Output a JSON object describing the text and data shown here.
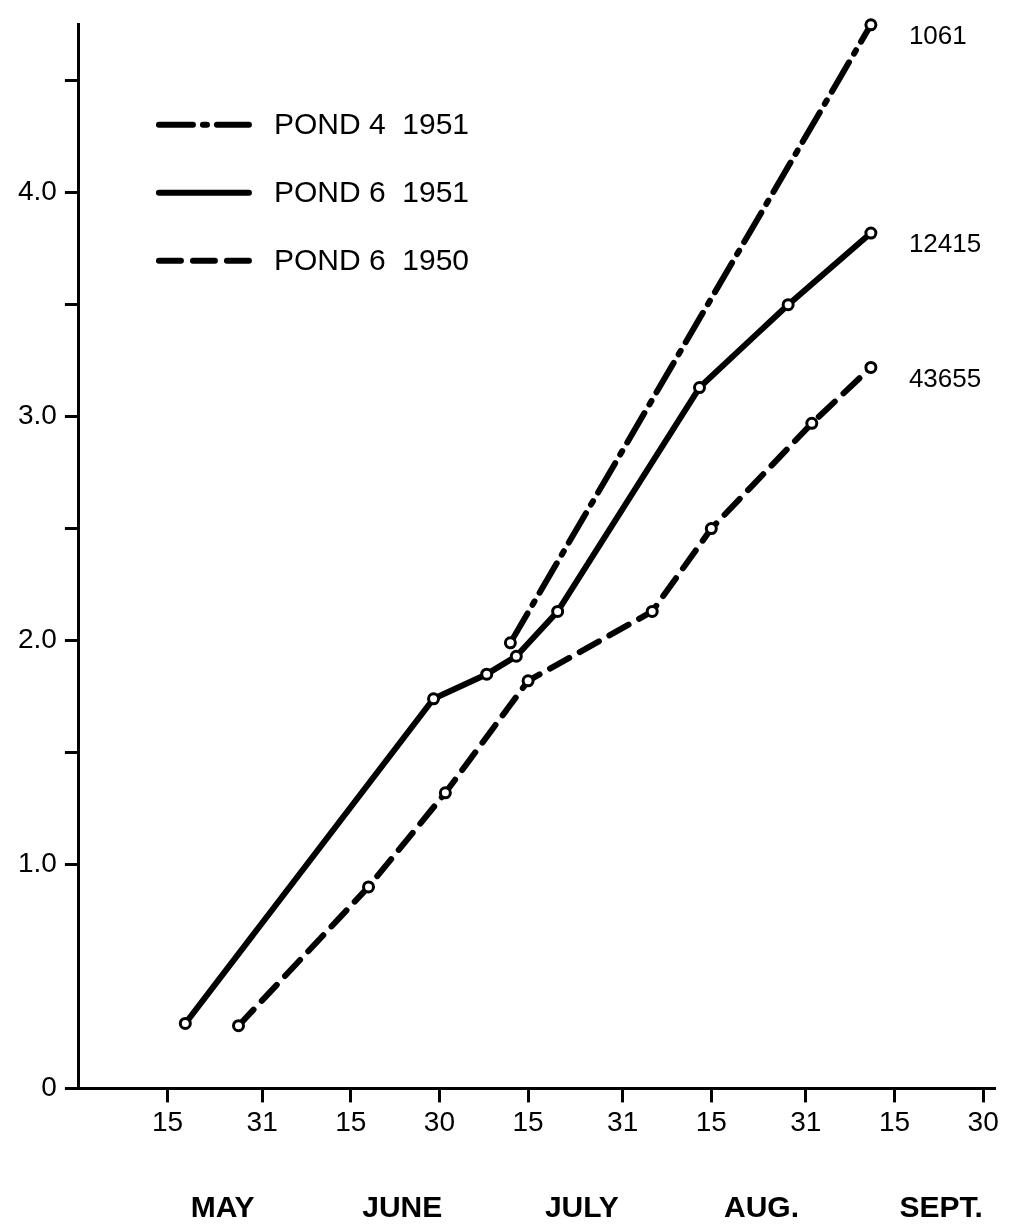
{
  "chart_data": {
    "type": "line",
    "xlim": [
      "--04-30",
      "--10-02"
    ],
    "ylim": [
      0,
      4.75
    ],
    "xticks": [
      {
        "value": "--05-15",
        "label": "15"
      },
      {
        "value": "--05-31",
        "label": "31"
      },
      {
        "value": "--06-15",
        "label": "15"
      },
      {
        "value": "--06-30",
        "label": "30"
      },
      {
        "value": "--07-15",
        "label": "15"
      },
      {
        "value": "--07-31",
        "label": "31"
      },
      {
        "value": "--08-15",
        "label": "15"
      },
      {
        "value": "--08-31",
        "label": "31"
      },
      {
        "value": "--09-15",
        "label": "15"
      },
      {
        "value": "--09-30",
        "label": "30"
      }
    ],
    "yticks": [
      0,
      {
        "value": 1,
        "label": "1.0"
      },
      {
        "value": 1.5,
        "label": null
      },
      {
        "value": 2,
        "label": "2.0"
      },
      {
        "value": 2.5,
        "label": null
      },
      {
        "value": 3,
        "label": "3.0"
      },
      {
        "value": 3.5,
        "label": null
      },
      {
        "value": 4,
        "label": "4.0"
      },
      {
        "value": 4.5,
        "label": null
      }
    ],
    "series": [
      {
        "name": "POND 4  1951",
        "color": "#000000",
        "line_style": "dashdot",
        "x": [
          "--07-12",
          "--09-11"
        ],
        "values": [
          1.99,
          4.75
        ]
      },
      {
        "name": "POND 6  1951",
        "color": "#000000",
        "line_style": "solid",
        "x": [
          "--05-18",
          "--06-29",
          "--07-08",
          "--07-13",
          "--07-20",
          "--08-13",
          "--08-28",
          "--09-11"
        ],
        "values": [
          0.29,
          1.74,
          1.85,
          1.93,
          2.13,
          3.13,
          3.5,
          3.82
        ]
      },
      {
        "name": "POND 6  1950",
        "color": "#000000",
        "line_style": "dashed",
        "x": [
          "--05-27",
          "--06-18",
          "--07-01",
          "--07-15",
          "--08-05",
          "--08-15",
          "--09-01",
          "--09-11"
        ],
        "values": [
          0.28,
          0.9,
          1.32,
          1.82,
          2.13,
          2.5,
          2.97,
          3.22
        ]
      }
    ],
    "annotations": [
      {
        "text": "1061",
        "x": "--09-11",
        "y": 4.75
      },
      {
        "text": "12415",
        "x": "--09-11",
        "y": 3.82
      },
      {
        "text": "43655",
        "x": "--09-11",
        "y": 3.22
      },
      "MAY",
      "JUNE",
      "JULY",
      "AUG.",
      "SEPT."
    ],
    "marker": "circle",
    "grid": false,
    "legend": "top left"
  }
}
